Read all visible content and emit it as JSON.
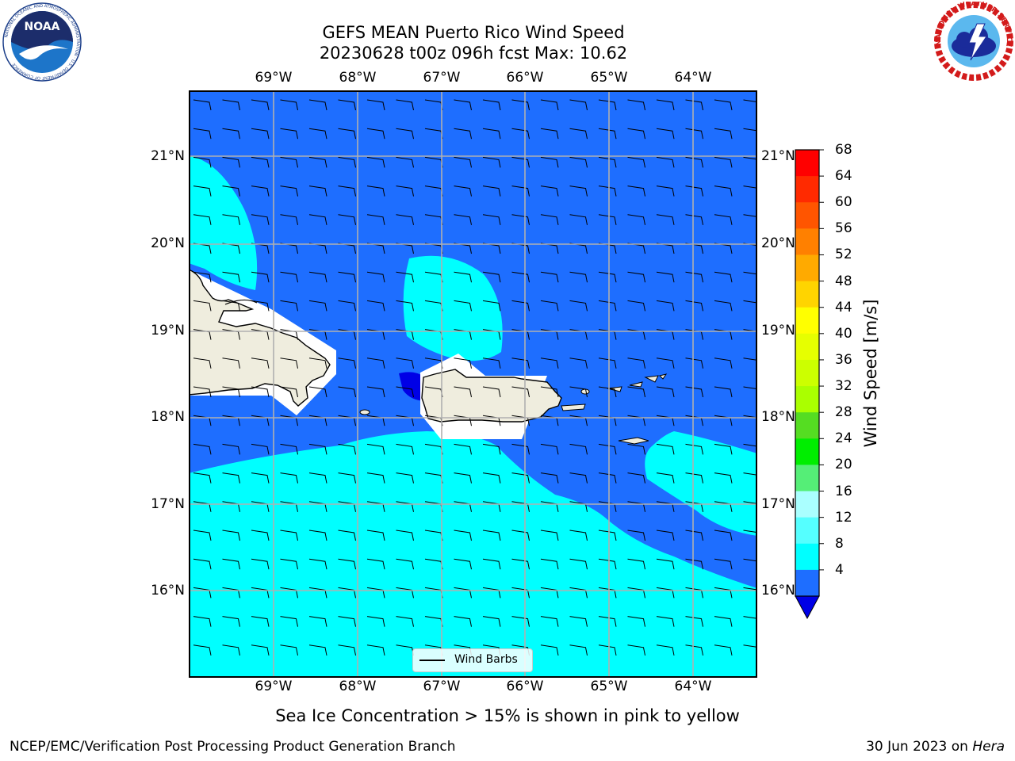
{
  "title": {
    "line1": "GEFS MEAN Puerto Rico Wind Speed",
    "line2": "20230628 t00z 096h fcst   Max: 10.62"
  },
  "map": {
    "lon_ticks": [
      "69°W",
      "68°W",
      "67°W",
      "66°W",
      "65°W",
      "64°W"
    ],
    "lat_ticks": [
      "21°N",
      "20°N",
      "19°N",
      "18°N",
      "17°N",
      "16°N"
    ],
    "legend_label": "Wind Barbs",
    "colors": {
      "ocean_4_8": "#1e6eff",
      "ocean_8_12": "#00ffff",
      "ocean_below_4": "#0000e6",
      "land": "#efedde",
      "grid": "#b0b0b0"
    }
  },
  "colorbar": {
    "title": "Wind Speed [m/s]",
    "levels": [
      "68",
      "64",
      "60",
      "56",
      "52",
      "48",
      "44",
      "40",
      "36",
      "32",
      "28",
      "24",
      "20",
      "16",
      "12",
      "8",
      "4"
    ],
    "colors": [
      "#ff0000",
      "#ff2a00",
      "#ff5500",
      "#ff8000",
      "#ffaa00",
      "#ffd400",
      "#ffff00",
      "#e6ff00",
      "#ccff00",
      "#aaff00",
      "#55dd22",
      "#00ee00",
      "#55ee77",
      "#aaffff",
      "#55ffff",
      "#00ffff",
      "#1e6eff"
    ],
    "under_color": "#0000e6"
  },
  "footer": {
    "note": "Sea Ice Concentration > 15% is shown in pink to yellow",
    "branch": "NCEP/EMC/Verification Post Processing Product Generation Branch",
    "date": "30 Jun 2023 on ",
    "machine": "Hera"
  },
  "logos": {
    "noaa_text": "NOAA",
    "noaa_ring": "NATIONAL OCEANIC AND ATMOSPHERIC ADMINISTRATION · U.S. DEPARTMENT OF COMMERCE",
    "nws_ring": "NATIONAL WEATHER SERVICE"
  }
}
